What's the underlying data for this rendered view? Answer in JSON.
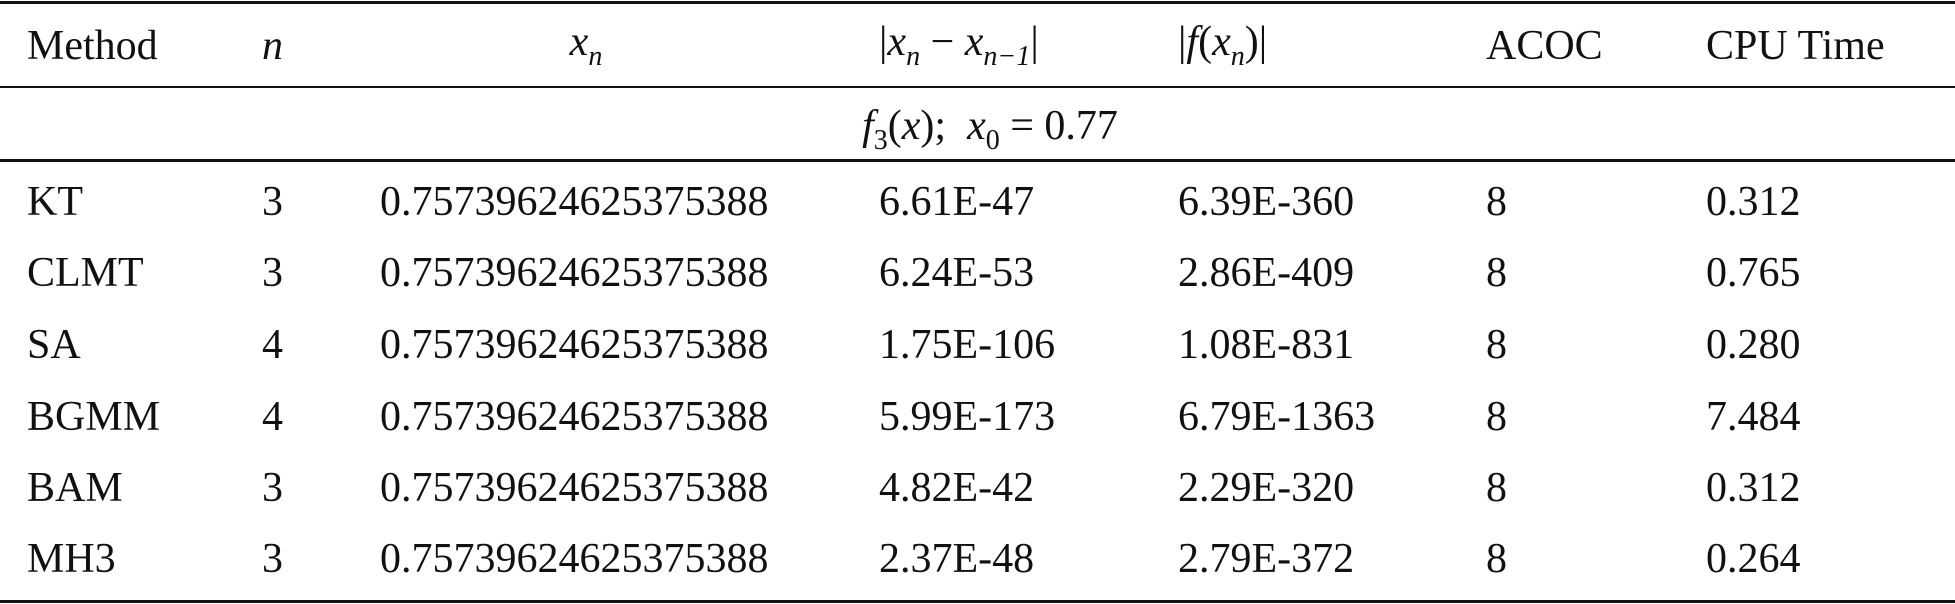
{
  "table": {
    "header": [
      [
        {
          "text": "Method"
        }
      ],
      [
        {
          "text": "n",
          "style": "italic"
        }
      ],
      [
        {
          "text": "x",
          "style": "italic"
        },
        {
          "text": "n",
          "style": "subscript-italic"
        }
      ],
      [
        {
          "text": "|"
        },
        {
          "text": "x",
          "style": "italic"
        },
        {
          "text": "n",
          "style": "subscript-italic"
        },
        {
          "text": " − "
        },
        {
          "text": "x",
          "style": "italic"
        },
        {
          "text": "n−1",
          "style": "subscript-italic"
        },
        {
          "text": "|"
        }
      ],
      [
        {
          "text": "|"
        },
        {
          "text": "f",
          "style": "italic"
        },
        {
          "text": "("
        },
        {
          "text": "x",
          "style": "italic"
        },
        {
          "text": "n",
          "style": "subscript-italic"
        },
        {
          "text": ")|"
        }
      ],
      [
        {
          "text": "ACOC"
        }
      ],
      [
        {
          "text": "CPU Time"
        }
      ]
    ],
    "subheader": [
      {
        "text": "f",
        "style": "italic"
      },
      {
        "text": "3",
        "style": "subscript"
      },
      {
        "text": "("
      },
      {
        "text": "x",
        "style": "italic"
      },
      {
        "text": ");  "
      },
      {
        "text": "x",
        "style": "italic"
      },
      {
        "text": "0",
        "style": "subscript"
      },
      {
        "text": " = 0.77"
      }
    ],
    "rows": [
      [
        "KT",
        "3",
        "0.75739624625375388",
        "6.61E-47",
        "6.39E-360",
        "8",
        "0.312"
      ],
      [
        "CLMT",
        "3",
        "0.75739624625375388",
        "6.24E-53",
        "2.86E-409",
        "8",
        "0.765"
      ],
      [
        "SA",
        "4",
        "0.75739624625375388",
        "1.75E-106",
        "1.08E-831",
        "8",
        "0.280"
      ],
      [
        "BGMM",
        "4",
        "0.75739624625375388",
        "5.99E-173",
        "6.79E-1363",
        "8",
        "7.484"
      ],
      [
        "BAM",
        "3",
        "0.75739624625375388",
        "4.82E-42",
        "2.29E-320",
        "8",
        "0.312"
      ],
      [
        "MH3",
        "3",
        "0.75739624625375388",
        "2.37E-48",
        "2.79E-372",
        "8",
        "0.264"
      ]
    ]
  }
}
